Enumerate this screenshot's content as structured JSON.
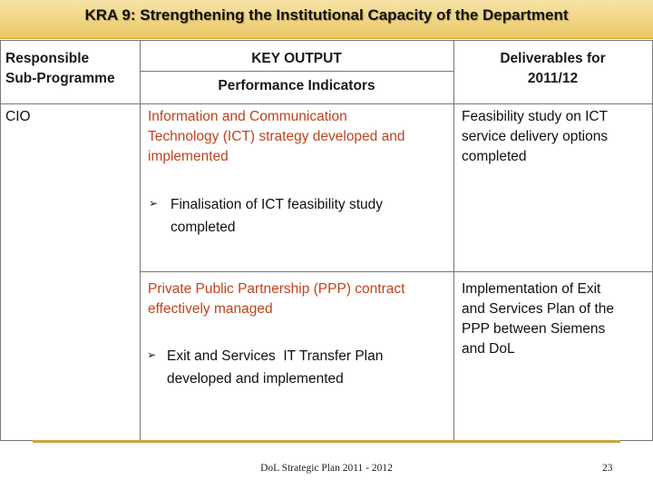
{
  "title": "KRA 9: Strengthening the Institutional Capacity of the Department",
  "table": {
    "headers": {
      "responsible": [
        "Responsible",
        "Sub-Programme"
      ],
      "key_output": "KEY OUTPUT",
      "performance": "Performance Indicators",
      "deliverables": [
        "Deliverables for",
        "2011/12"
      ]
    },
    "sub_programme": "CIO",
    "rows": [
      {
        "output": [
          "Information and Communication",
          "Technology (ICT) strategy developed and",
          "implemented"
        ],
        "indicator": [
          "Finalisation of ICT feasibility study",
          "completed"
        ],
        "deliverable": [
          "Feasibility study on ICT",
          "service delivery options",
          "completed"
        ]
      },
      {
        "output": [
          "Private Public Partnership (PPP) contract",
          "effectively managed"
        ],
        "indicator": [
          "Exit and Services  IT Transfer Plan",
          "developed and implemented"
        ],
        "deliverable": [
          "Implementation of Exit",
          "and Services Plan of the",
          "PPP between Siemens",
          "and DoL"
        ]
      }
    ],
    "bullet_glyph": "➢"
  },
  "footer": {
    "doc": "DoL Strategic Plan 2011 - 2012",
    "page": "23"
  }
}
